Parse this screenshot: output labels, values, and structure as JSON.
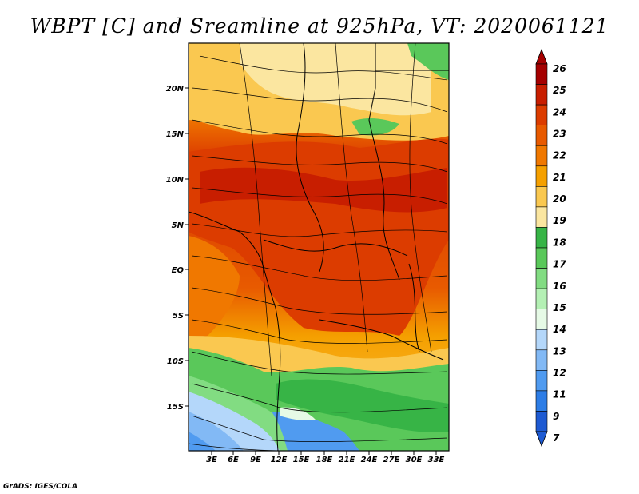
{
  "title": "WBPT [C] and Sreamline at 925hPa, VT: 2020061121",
  "credit": "GrADS: IGES/COLA",
  "map": {
    "lat_labels": [
      "20N",
      "15N",
      "10N",
      "5N",
      "EQ",
      "5S",
      "10S",
      "15S"
    ],
    "lon_labels": [
      "3E",
      "6E",
      "9E",
      "12E",
      "15E",
      "18E",
      "21E",
      "24E",
      "27E",
      "30E",
      "33E"
    ]
  },
  "colorbar": {
    "labels": [
      "26",
      "25",
      "24",
      "23",
      "22",
      "21",
      "20",
      "19",
      "18",
      "17",
      "16",
      "15",
      "14",
      "13",
      "12",
      "11",
      "9",
      "7"
    ],
    "colors": [
      "#a50000",
      "#c81e00",
      "#dc3c00",
      "#e85a00",
      "#f07800",
      "#f5a000",
      "#fac850",
      "#fbe6a0",
      "#37b446",
      "#5ac85a",
      "#82dc82",
      "#b4f0b4",
      "#e6fae6",
      "#b4d7fa",
      "#82b9f5",
      "#509bf0",
      "#2d7de6",
      "#1e5ad2"
    ]
  }
}
